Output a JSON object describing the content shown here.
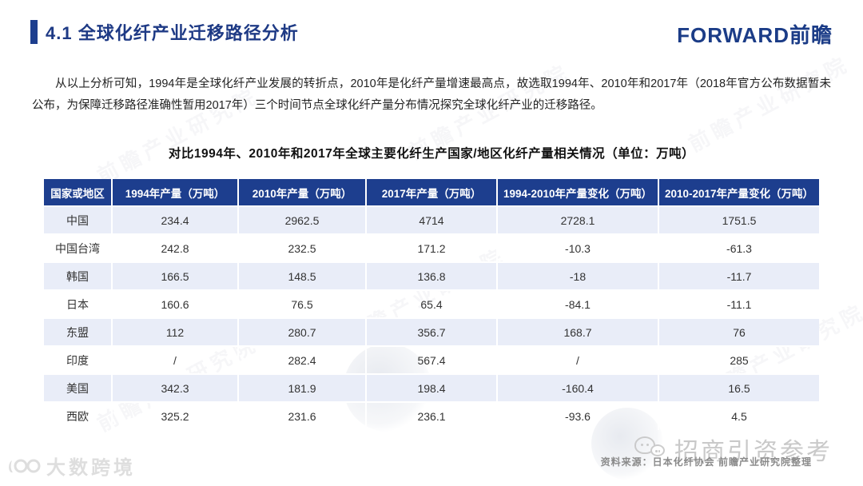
{
  "slide": {
    "section_title": "4.1 全球化纤产业迁移路径分析",
    "logo_text": "FORWARD前瞻",
    "intro": "从以上分析可知，1994年是全球化纤产业发展的转折点，2010年是化纤产量增速最高点，故选取1994年、2010年和2017年（2018年官方公布数据暂未公布，为保障迁移路径准确性暂用2017年）三个时间节点全球化纤产量分布情况探究全球化纤产业的迁移路径。"
  },
  "table": {
    "title": "对比1994年、2010年和2017年全球主要化纤生产国家/地区化纤产量相关情况（单位：万吨）",
    "columns": [
      "国家或地区",
      "1994年产量（万吨）",
      "2010年产量（万吨）",
      "2017年产量（万吨）",
      "1994-2010年产量变化（万吨）",
      "2010-2017年产量变化（万吨）"
    ],
    "rows": [
      [
        "中国",
        "234.4",
        "2962.5",
        "4714",
        "2728.1",
        "1751.5"
      ],
      [
        "中国台湾",
        "242.8",
        "232.5",
        "171.2",
        "-10.3",
        "-61.3"
      ],
      [
        "韩国",
        "166.5",
        "148.5",
        "136.8",
        "-18",
        "-11.7"
      ],
      [
        "日本",
        "160.6",
        "76.5",
        "65.4",
        "-84.1",
        "-11.1"
      ],
      [
        "东盟",
        "112",
        "280.7",
        "356.7",
        "168.7",
        "76"
      ],
      [
        "印度",
        "/",
        "282.4",
        "567.4",
        "/",
        "285"
      ],
      [
        "美国",
        "342.3",
        "181.9",
        "198.4",
        "-160.4",
        "16.5"
      ],
      [
        "西欧",
        "325.2",
        "231.6",
        "236.1",
        "-93.6",
        "4.5"
      ]
    ]
  },
  "footer": {
    "source": "资料来源：日本化纤协会 前瞻产业研究院整理",
    "watermark_right": "招商引资参考",
    "watermark_left": "大数跨境"
  },
  "watermark": {
    "tile_text": "前瞻产业研究院"
  },
  "colors": {
    "accent_navy": "#1d3e8e",
    "header_bg": "#1d3e8e",
    "row_stripe": "#e9edf8",
    "title_navy": "#1e3a85",
    "source_gray": "#8a8a8a",
    "watermark_gray": "#c9c9c9"
  }
}
